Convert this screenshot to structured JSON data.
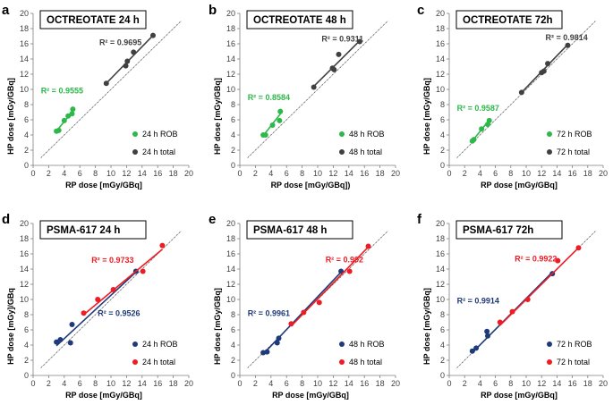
{
  "colors": {
    "green": "#2db84a",
    "dark": "#404040",
    "navy": "#1f3a7a",
    "red": "#ee1c24",
    "identity": "#555555"
  },
  "chart_data": [
    {
      "type": "scatter",
      "letter": "a",
      "title": "OCTREOTATE 24 h",
      "xlabel": "RP dose [mGy/GBq]",
      "ylabel": "HP dose [mGy/GBq]",
      "xlim": [
        0,
        20
      ],
      "ylim": [
        0,
        20
      ],
      "xticks": [
        "0",
        "2",
        "4",
        "6",
        "8",
        "10",
        "12",
        "14",
        "16",
        "18",
        "20"
      ],
      "yticks": [
        "0",
        "2",
        "4",
        "6",
        "8",
        "10",
        "12",
        "14",
        "16",
        "18",
        "20"
      ],
      "legend_position": "lower-right",
      "series": [
        {
          "name": "24 h ROB",
          "color": "#2db84a",
          "x": [
            3.0,
            3.3,
            4.0,
            4.5,
            5.0,
            5.1
          ],
          "y": [
            4.5,
            4.6,
            5.9,
            6.5,
            6.8,
            7.4
          ],
          "fit": [
            3.0,
            4.5,
            5.2,
            7.3
          ],
          "r2": "R² = 0.9555",
          "r2_anchor": "left",
          "r2_at": [
            1.0,
            9.5
          ]
        },
        {
          "name": "24 h total",
          "color": "#404040",
          "x": [
            9.4,
            11.9,
            12.1,
            12.9,
            15.4
          ],
          "y": [
            10.8,
            13.1,
            13.7,
            14.9,
            17.1
          ],
          "fit": [
            9.4,
            10.8,
            15.4,
            17.1
          ],
          "r2": "R² = 0.9695",
          "r2_anchor": "left",
          "r2_at": [
            8.5,
            15.8
          ]
        }
      ]
    },
    {
      "type": "scatter",
      "letter": "b",
      "title": "OCTREOTATE 48 h",
      "xlabel": "RP dose [mGy/GBq])",
      "ylabel": "HP dose [mGy/GBq]",
      "xlim": [
        0,
        20
      ],
      "ylim": [
        0,
        20
      ],
      "xticks": [
        "0",
        "2",
        "4",
        "6",
        "8",
        "10",
        "12",
        "14",
        "16",
        "18",
        "20"
      ],
      "yticks": [
        "0",
        "2",
        "4",
        "6",
        "8",
        "10",
        "12",
        "14",
        "16",
        "18",
        "20"
      ],
      "legend_position": "lower-right",
      "series": [
        {
          "name": "48 h ROB",
          "color": "#2db84a",
          "x": [
            3.0,
            3.3,
            4.2,
            5.1,
            5.2
          ],
          "y": [
            4.0,
            4.0,
            5.3,
            5.9,
            7.1
          ],
          "fit": [
            3.0,
            3.9,
            5.3,
            6.9
          ],
          "r2": "R² = 0.8584",
          "r2_anchor": "left",
          "r2_at": [
            1.0,
            8.6
          ]
        },
        {
          "name": "48 h total",
          "color": "#404040",
          "x": [
            9.5,
            11.9,
            12.1,
            12.7,
            15.4
          ],
          "y": [
            10.3,
            12.8,
            12.6,
            14.6,
            16.3
          ],
          "fit": [
            9.5,
            10.4,
            15.4,
            16.4
          ],
          "r2": "R² = 0.9311",
          "r2_anchor": "left",
          "r2_at": [
            10.5,
            16.3
          ]
        }
      ]
    },
    {
      "type": "scatter",
      "letter": "c",
      "title": "OCTREOTATE 72h",
      "xlabel": "RP dose [mGy/GBq]",
      "ylabel": "HP dose [mGy/GBq]",
      "xlim": [
        0,
        20
      ],
      "ylim": [
        0,
        20
      ],
      "xticks": [
        "0",
        "2",
        "4",
        "6",
        "8",
        "10",
        "12",
        "14",
        "16",
        "18",
        "20"
      ],
      "yticks": [
        "0",
        "2",
        "4",
        "6",
        "8",
        "10",
        "12",
        "14",
        "16",
        "18",
        "20"
      ],
      "legend_position": "lower-right",
      "series": [
        {
          "name": "72 h ROB",
          "color": "#2db84a",
          "x": [
            3.0,
            3.2,
            4.2,
            5.0,
            5.2
          ],
          "y": [
            3.2,
            3.4,
            4.8,
            5.4,
            5.9
          ],
          "fit": [
            3.0,
            3.2,
            5.3,
            6.1
          ],
          "r2": "R² = 0.9587",
          "r2_anchor": "left",
          "r2_at": [
            1.0,
            7.2
          ]
        },
        {
          "name": "72 h total",
          "color": "#404040",
          "x": [
            9.4,
            12.0,
            12.3,
            12.8,
            15.4
          ],
          "y": [
            9.6,
            12.2,
            12.4,
            13.4,
            15.8
          ],
          "fit": [
            9.4,
            9.6,
            15.4,
            15.9
          ],
          "r2": "R² = 0.9814",
          "r2_anchor": "left",
          "r2_at": [
            12.5,
            16.5
          ]
        }
      ]
    },
    {
      "type": "scatter",
      "letter": "d",
      "title": "PSMA-617 24 h",
      "xlabel": "RP dose [mGy/GBq]",
      "ylabel": "HP dose [mGy]/GBq",
      "xlim": [
        0,
        20
      ],
      "ylim": [
        0,
        20
      ],
      "xticks": [
        "0",
        "2",
        "4",
        "6",
        "8",
        "10",
        "12",
        "14",
        "16",
        "18",
        "20"
      ],
      "yticks": [
        "0",
        "2",
        "4",
        "6",
        "8",
        "10",
        "12",
        "14",
        "16",
        "18",
        "20"
      ],
      "legend_position": "lower-right",
      "series": [
        {
          "name": "24 h ROB",
          "color": "#1f3a7a",
          "x": [
            3.0,
            3.5,
            4.8,
            5.0,
            13.2
          ],
          "y": [
            4.4,
            4.7,
            4.3,
            6.7,
            13.7
          ],
          "fit": [
            3.0,
            3.9,
            13.2,
            13.6
          ],
          "r2": "R² = 0.9526",
          "r2_anchor": "left",
          "r2_at": [
            8.3,
            7.8
          ]
        },
        {
          "name": "24 h total",
          "color": "#ee1c24",
          "x": [
            6.5,
            8.3,
            10.3,
            14.1,
            16.6
          ],
          "y": [
            8.2,
            10.0,
            11.3,
            13.7,
            17.1
          ],
          "fit": [
            6.5,
            8.0,
            16.6,
            16.6
          ],
          "r2": "R² = 0.9733",
          "r2_anchor": "left",
          "r2_at": [
            7.5,
            14.8
          ]
        }
      ]
    },
    {
      "type": "scatter",
      "letter": "e",
      "title": "PSMA-617 48 h",
      "xlabel": "RP dose [mGy/GBq]",
      "ylabel": "HP dose [mGy/GBq]",
      "xlim": [
        0,
        20
      ],
      "ylim": [
        0,
        20
      ],
      "xticks": [
        "0",
        "2",
        "4",
        "6",
        "8",
        "10",
        "12",
        "14",
        "16",
        "18",
        "20"
      ],
      "yticks": [
        "0",
        "2",
        "4",
        "6",
        "8",
        "10",
        "12",
        "14",
        "16",
        "18",
        "20"
      ],
      "legend_position": "lower-right",
      "series": [
        {
          "name": "48 h ROB",
          "color": "#1f3a7a",
          "x": [
            3.0,
            3.5,
            4.8,
            5.0,
            13.0
          ],
          "y": [
            3.0,
            3.1,
            4.3,
            4.9,
            13.7
          ],
          "fit": [
            3.0,
            2.8,
            13.0,
            13.6
          ],
          "r2": "R² = 0.9961",
          "r2_anchor": "left",
          "r2_at": [
            1.0,
            7.8
          ]
        },
        {
          "name": "48 h total",
          "color": "#ee1c24",
          "x": [
            6.6,
            8.2,
            10.2,
            14.1,
            16.5
          ],
          "y": [
            6.8,
            8.3,
            9.6,
            13.7,
            17.0
          ],
          "fit": [
            6.6,
            6.5,
            16.5,
            16.9
          ],
          "r2": "R² = 0.992",
          "r2_anchor": "left",
          "r2_at": [
            11.0,
            14.9
          ]
        }
      ]
    },
    {
      "type": "scatter",
      "letter": "f",
      "title": "PSMA-617 72h",
      "xlabel": "RP dose [mGy/GBq]",
      "ylabel": "HP dose [mGy/GBq]",
      "xlim": [
        0,
        20
      ],
      "ylim": [
        0,
        20
      ],
      "xticks": [
        "0",
        "2",
        "4",
        "6",
        "8",
        "10",
        "12",
        "14",
        "16",
        "18",
        "20"
      ],
      "yticks": [
        "0",
        "2",
        "4",
        "6",
        "8",
        "10",
        "12",
        "14",
        "16",
        "18",
        "20"
      ],
      "legend_position": "lower-right",
      "series": [
        {
          "name": "72 h ROB",
          "color": "#1f3a7a",
          "x": [
            3.0,
            3.5,
            4.9,
            5.0,
            13.4
          ],
          "y": [
            3.2,
            3.6,
            5.8,
            5.2,
            13.4
          ],
          "fit": [
            3.0,
            3.0,
            13.4,
            13.6
          ],
          "r2": "R² = 0.9914",
          "r2_anchor": "left",
          "r2_at": [
            1.0,
            9.5
          ]
        },
        {
          "name": "72 h total",
          "color": "#ee1c24",
          "x": [
            6.6,
            8.2,
            10.2,
            14.1,
            16.8
          ],
          "y": [
            7.0,
            8.4,
            10.0,
            15.1,
            16.8
          ],
          "fit": [
            6.6,
            6.6,
            16.8,
            16.8
          ],
          "r2": "R² = 0.9922",
          "r2_anchor": "left",
          "r2_at": [
            8.5,
            15.0
          ]
        }
      ]
    }
  ]
}
